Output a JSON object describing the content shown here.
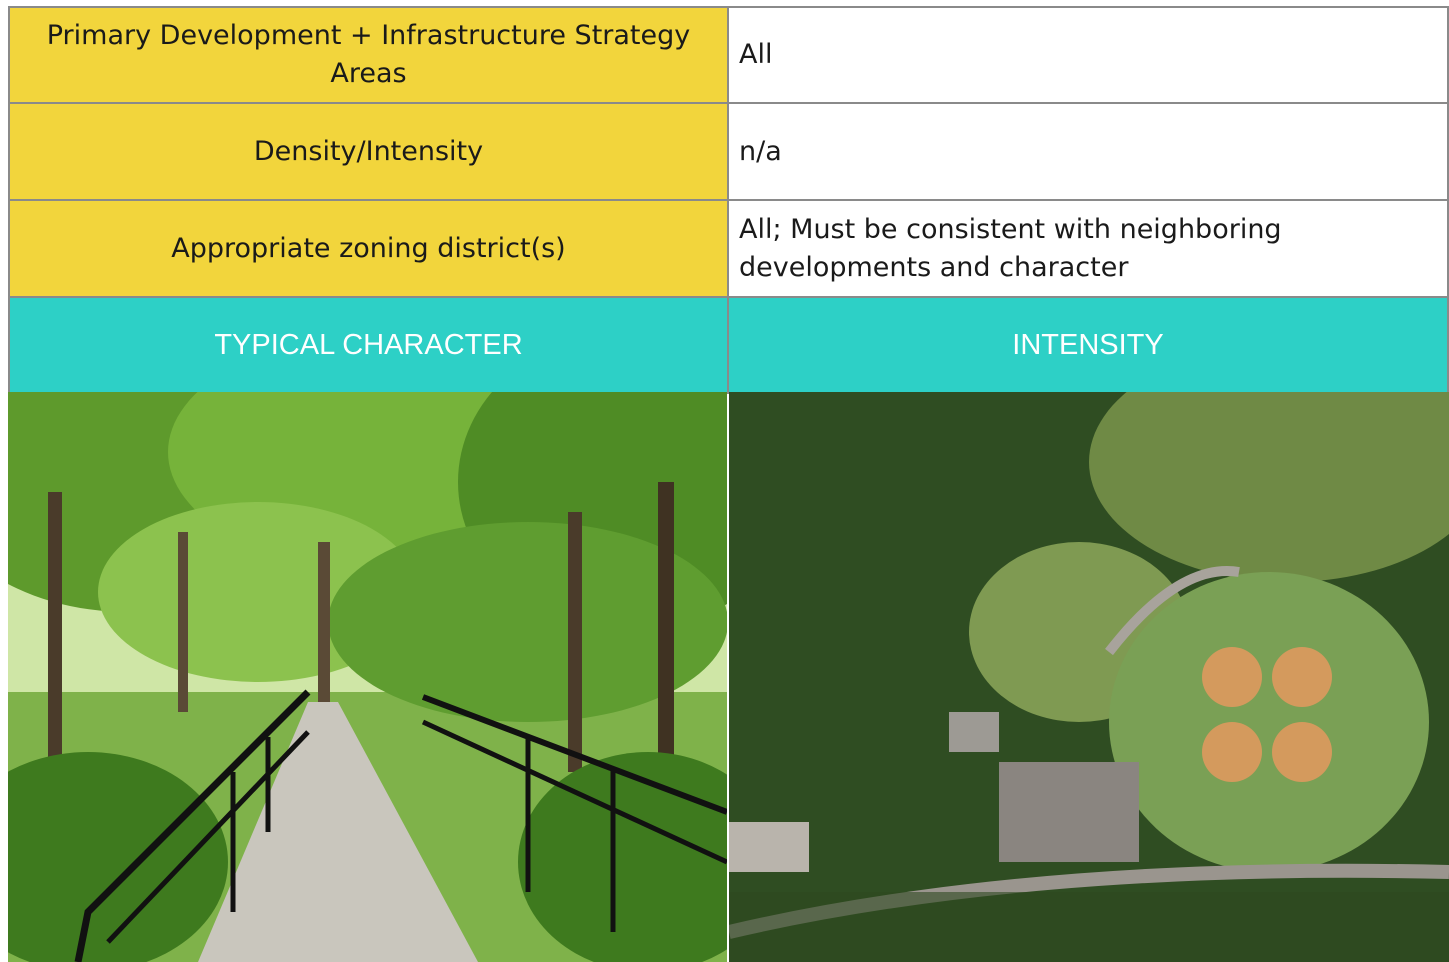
{
  "table": {
    "rows": [
      [
        "Primary Development + Infrastructure Strategy Areas",
        "All"
      ],
      [
        "Density/Intensity",
        "n/a"
      ],
      [
        "Appropriate zoning district(s)",
        "All; Must be consistent with neighboring developments and character"
      ]
    ],
    "header": [
      "TYPICAL CHARACTER",
      "INTENSITY"
    ]
  }
}
